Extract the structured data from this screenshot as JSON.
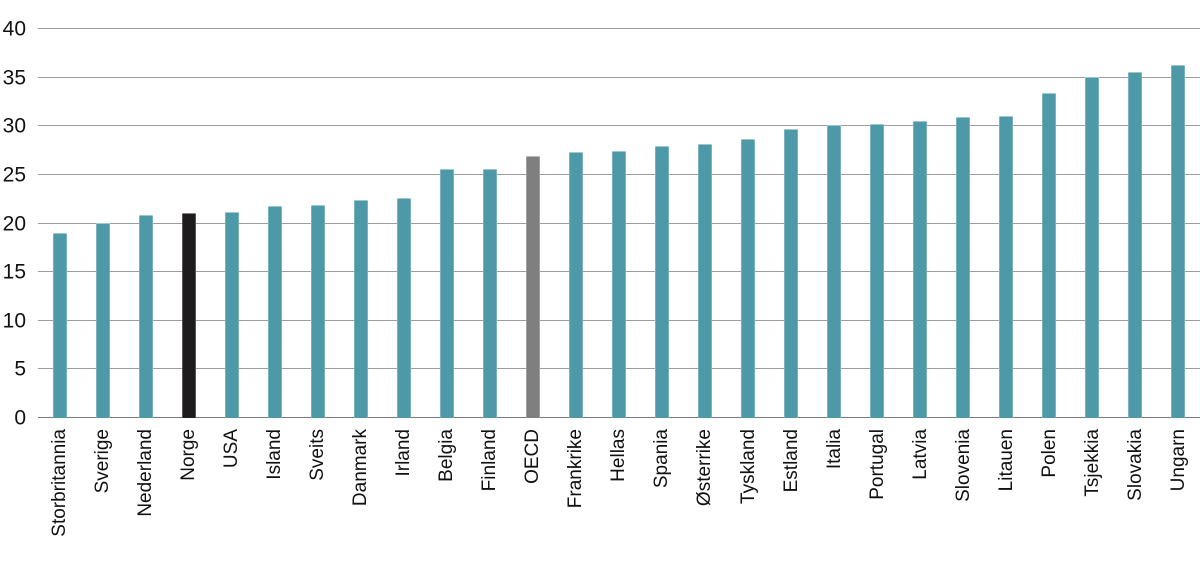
{
  "chart_data": {
    "type": "bar",
    "title": "",
    "categories": [
      "Storbritannia",
      "Sverige",
      "Nederland",
      "Norge",
      "USA",
      "Island",
      "Sveits",
      "Danmark",
      "Irland",
      "Belgia",
      "Finland",
      "OECD",
      "Frankrike",
      "Hellas",
      "Spania",
      "Østerrike",
      "Tyskland",
      "Estland",
      "Italia",
      "Portugal",
      "Latvia",
      "Slovenia",
      "Litauen",
      "Polen",
      "Tsjekkia",
      "Slovakia",
      "Ungarn"
    ],
    "values": [
      19.0,
      20.1,
      20.9,
      21.1,
      21.2,
      21.8,
      21.9,
      22.4,
      22.6,
      25.6,
      25.6,
      26.9,
      27.4,
      27.5,
      28.0,
      28.2,
      28.7,
      29.7,
      30.1,
      30.2,
      30.5,
      31.0,
      31.1,
      33.4,
      35.1,
      35.6,
      36.3
    ],
    "xlabel": "",
    "ylabel": "",
    "ylim": [
      0,
      40
    ],
    "yticks": [
      0,
      5,
      10,
      15,
      20,
      25,
      30,
      35,
      40
    ],
    "grid": true,
    "legend": null,
    "bar_colors": {
      "default": "#4d99a8",
      "overrides": {
        "Norge": "#1f1c1d",
        "OECD": "#7f7f7f"
      }
    }
  },
  "colors": {
    "background": "#ffffff",
    "gridline": "#9d9d9d",
    "baseline": "#7a7a7a",
    "tick_text": "#111111"
  }
}
